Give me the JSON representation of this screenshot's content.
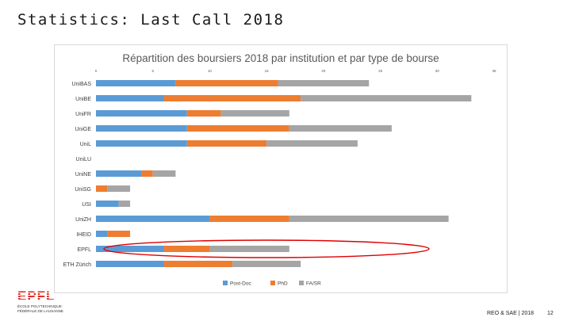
{
  "slide": {
    "title": "Statistics: Last Call 2018",
    "footer_text": "REO & SAE | 2018",
    "page_number": "12",
    "logo_text": [
      "EPFL",
      "ÉCOLE POLYTECHNIQUE",
      "FÉDÉRALE DE LAUSANNE"
    ]
  },
  "colors": {
    "post_doc": "#5b9bd5",
    "phd": "#ed7d31",
    "fa_sr": "#a5a5a5",
    "highlight": "#e00000",
    "logo_red": "#e2231a"
  },
  "chart_data": {
    "type": "bar",
    "orientation": "horizontal",
    "stacked": true,
    "title": "Répartition des boursiers 2018 par institution et par type de bourse",
    "xlim": [
      0,
      35
    ],
    "xticks": [
      0,
      5,
      10,
      15,
      20,
      25,
      30,
      35
    ],
    "grid": false,
    "legend_position": "bottom",
    "categories": [
      "UniBAS",
      "UniBE",
      "UniFR",
      "UniGE",
      "UniL",
      "UniLU",
      "UniNE",
      "UniSG",
      "USI",
      "UniZH",
      "IHEID",
      "EPFL",
      "ETH Zürich"
    ],
    "series": [
      {
        "name": "Post-Doc",
        "values": [
          7,
          6,
          8,
          8,
          8,
          0,
          4,
          0,
          2,
          10,
          1,
          6,
          6
        ]
      },
      {
        "name": "PhD",
        "values": [
          9,
          12,
          3,
          9,
          7,
          0,
          1,
          1,
          0,
          7,
          2,
          4,
          6
        ]
      },
      {
        "name": "FA/SR",
        "values": [
          8,
          15,
          6,
          9,
          8,
          0,
          2,
          2,
          1,
          14,
          0,
          7,
          6
        ]
      }
    ],
    "highlighted_category": "EPFL"
  }
}
